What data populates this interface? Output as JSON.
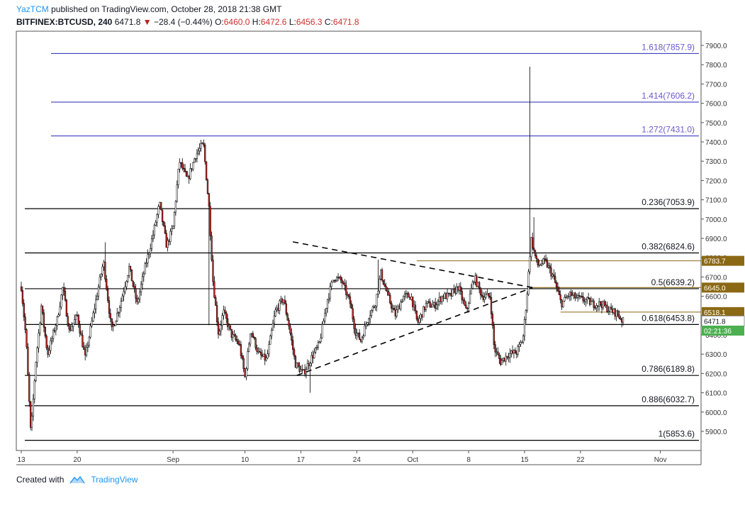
{
  "header": {
    "author": "YazTCM",
    "published_text": "published on TradingView.com, October 28, 2018 21:38 GMT",
    "symbol": "BITFINEX:BTCUSD, 240",
    "last": "6471.8",
    "change": "−28.4 (−0.44%)",
    "open_label": "O:",
    "open": "6460.0",
    "high_label": "H:",
    "high": "6472.6",
    "low_label": "L:",
    "low": "6456.3",
    "close_label": "C:",
    "close": "6471.8"
  },
  "footer": {
    "created_with": "Created with",
    "brand": "TradingView"
  },
  "colors": {
    "up": "#ffffff",
    "down": "#c62828",
    "wick": "#000000",
    "ext_line": "#3f3fbf",
    "ext_text": "#6a5acd",
    "gold": "#8b6914",
    "green_badge": "#4caf50"
  },
  "chart_data": {
    "type": "candlestick",
    "y_axis": {
      "min": 5800,
      "max": 7950,
      "ticks": [
        5900,
        6000,
        6100,
        6200,
        6300,
        6400,
        6500,
        6600,
        6700,
        6800,
        6900,
        7000,
        7100,
        7200,
        7300,
        7400,
        7500,
        7600,
        7700,
        7800,
        7900
      ]
    },
    "x_axis": {
      "ticks": [
        {
          "label": "13",
          "day": 0
        },
        {
          "label": "20",
          "day": 7
        },
        {
          "label": "Sep",
          "day": 19
        },
        {
          "label": "10",
          "day": 28
        },
        {
          "label": "17",
          "day": 35
        },
        {
          "label": "24",
          "day": 42
        },
        {
          "label": "Oct",
          "day": 49
        },
        {
          "label": "8",
          "day": 56
        },
        {
          "label": "15",
          "day": 63
        },
        {
          "label": "22",
          "day": 70
        },
        {
          "label": "Nov",
          "day": 80
        }
      ]
    },
    "fib_levels": [
      {
        "label": "0.236(7053.9)",
        "value": 7053.9,
        "kind": "retrace"
      },
      {
        "label": "0.382(6824.6)",
        "value": 6824.6,
        "kind": "retrace"
      },
      {
        "label": "0.5(6639.2)",
        "value": 6639.2,
        "kind": "retrace"
      },
      {
        "label": "0.618(6453.8)",
        "value": 6453.8,
        "kind": "retrace"
      },
      {
        "label": "0.786(6189.8)",
        "value": 6189.8,
        "kind": "retrace"
      },
      {
        "label": "0.886(6032.7)",
        "value": 6032.7,
        "kind": "retrace"
      },
      {
        "label": "1(5853.6)",
        "value": 5853.6,
        "kind": "retrace"
      },
      {
        "label": "1.272(7431.0)",
        "value": 7431.0,
        "kind": "extension"
      },
      {
        "label": "1.414(7606.2)",
        "value": 7606.2,
        "kind": "extension"
      },
      {
        "label": "1.618(7857.9)",
        "value": 7857.9,
        "kind": "extension"
      }
    ],
    "horizontal_lines": [
      {
        "value": 6783.7,
        "start_day": 49.5
      },
      {
        "value": 6645.0,
        "start_day": 64.0
      },
      {
        "value": 6518.1,
        "start_day": 67.5
      }
    ],
    "axis_badges": [
      {
        "text": "6783.7",
        "value": 6783.7,
        "kind": "gold"
      },
      {
        "text": "6645.0",
        "value": 6645.0,
        "kind": "gold"
      },
      {
        "text": "6518.1",
        "value": 6518.1,
        "kind": "gold"
      },
      {
        "text": "6471.8",
        "value": 6471.8,
        "kind": "white"
      },
      {
        "text": "02:21:36",
        "value": 6422,
        "kind": "green"
      }
    ],
    "trendlines": [
      {
        "from": {
          "day": 34.5,
          "price": 6190
        },
        "to": {
          "day": 64.0,
          "price": 6645
        }
      },
      {
        "from": {
          "day": 34.0,
          "price": 6882
        },
        "to": {
          "day": 64.0,
          "price": 6645
        }
      }
    ],
    "price_path": [
      [
        0,
        6650
      ],
      [
        0.6,
        6380
      ],
      [
        1.2,
        5880
      ],
      [
        1.8,
        6250
      ],
      [
        2.5,
        6550
      ],
      [
        3.3,
        6300
      ],
      [
        4.5,
        6480
      ],
      [
        5.2,
        6650
      ],
      [
        6,
        6420
      ],
      [
        7,
        6500
      ],
      [
        8,
        6280
      ],
      [
        9.2,
        6550
      ],
      [
        10.3,
        6780
      ],
      [
        11.3,
        6420
      ],
      [
        12.4,
        6560
      ],
      [
        13.5,
        6750
      ],
      [
        14.5,
        6560
      ],
      [
        15.5,
        6750
      ],
      [
        16.5,
        6920
      ],
      [
        17.3,
        7080
      ],
      [
        18.2,
        6860
      ],
      [
        19,
        6960
      ],
      [
        19.8,
        7300
      ],
      [
        20.8,
        7200
      ],
      [
        21.8,
        7330
      ],
      [
        22.8,
        7390
      ],
      [
        23.5,
        7060
      ],
      [
        24,
        6680
      ],
      [
        24.7,
        6400
      ],
      [
        25.3,
        6520
      ],
      [
        26.3,
        6400
      ],
      [
        27.3,
        6350
      ],
      [
        28,
        6180
      ],
      [
        28.7,
        6430
      ],
      [
        29.7,
        6300
      ],
      [
        30.7,
        6270
      ],
      [
        31.8,
        6520
      ],
      [
        32.8,
        6590
      ],
      [
        33.5,
        6450
      ],
      [
        34.3,
        6250
      ],
      [
        35.3,
        6200
      ],
      [
        36.3,
        6280
      ],
      [
        37.3,
        6350
      ],
      [
        38.3,
        6580
      ],
      [
        39.1,
        6700
      ],
      [
        40.1,
        6680
      ],
      [
        41.2,
        6560
      ],
      [
        41.8,
        6420
      ],
      [
        42.5,
        6370
      ],
      [
        43.5,
        6500
      ],
      [
        44.3,
        6560
      ],
      [
        45,
        6720
      ],
      [
        45.8,
        6610
      ],
      [
        46.8,
        6500
      ],
      [
        47.8,
        6600
      ],
      [
        48.8,
        6600
      ],
      [
        49.6,
        6460
      ],
      [
        50.7,
        6560
      ],
      [
        51.7,
        6550
      ],
      [
        52.7,
        6600
      ],
      [
        53.7,
        6600
      ],
      [
        54.7,
        6650
      ],
      [
        55.7,
        6520
      ],
      [
        56.7,
        6700
      ],
      [
        57.7,
        6600
      ],
      [
        58.7,
        6600
      ],
      [
        59.2,
        6330
      ],
      [
        60,
        6260
      ],
      [
        61,
        6300
      ],
      [
        62,
        6310
      ],
      [
        62.8,
        6380
      ],
      [
        63.3,
        6600
      ],
      [
        63.8,
        6900
      ],
      [
        64.6,
        6760
      ],
      [
        65.6,
        6780
      ],
      [
        66.6,
        6700
      ],
      [
        67.6,
        6560
      ],
      [
        68.6,
        6610
      ],
      [
        69.6,
        6590
      ],
      [
        70.6,
        6580
      ],
      [
        71.6,
        6560
      ],
      [
        72.6,
        6560
      ],
      [
        73.6,
        6530
      ],
      [
        74.6,
        6510
      ],
      [
        75.3,
        6470
      ]
    ],
    "spikes": [
      {
        "day": 10.5,
        "high": 6880
      },
      {
        "day": 23.5,
        "low": 6450
      },
      {
        "day": 36.1,
        "low": 6100
      },
      {
        "day": 44.6,
        "high": 6790
      },
      {
        "day": 63.6,
        "high": 7790
      },
      {
        "day": 64.1,
        "high": 7010
      }
    ]
  }
}
